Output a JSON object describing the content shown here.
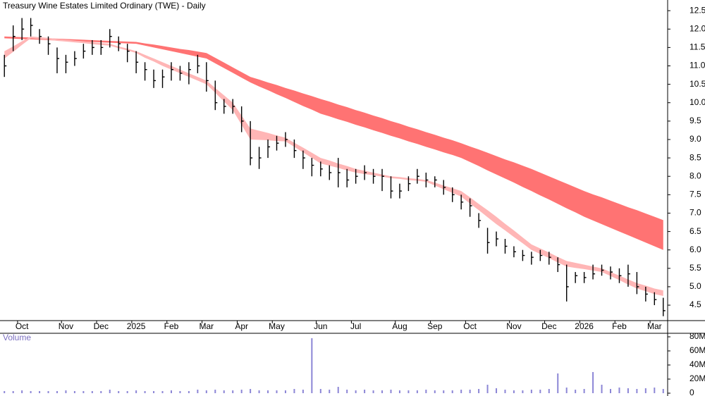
{
  "chart_data": [
    {
      "type": "ohlc",
      "title": "Treasury Wine Estates Limited Ordinary (TWE) - Daily",
      "categories": [
        null,
        null,
        "Oct",
        null,
        null,
        null,
        null,
        "Nov",
        null,
        null,
        null,
        "Dec",
        null,
        null,
        null,
        "2025",
        null,
        null,
        null,
        "Feb",
        null,
        null,
        null,
        "Mar",
        null,
        null,
        null,
        "Apr",
        null,
        null,
        null,
        "May",
        null,
        null,
        null,
        null,
        "Jun",
        null,
        null,
        null,
        "Jul",
        null,
        null,
        null,
        null,
        "Aug",
        null,
        null,
        null,
        "Sep",
        null,
        null,
        null,
        "Oct",
        null,
        null,
        null,
        null,
        "Nov",
        null,
        null,
        null,
        "Dec",
        null,
        null,
        null,
        "2026",
        null,
        null,
        null,
        "Feb",
        null,
        null,
        null,
        "Mar",
        null
      ],
      "high": [
        11.3,
        12.1,
        12.3,
        12.3,
        12.0,
        11.8,
        11.5,
        11.3,
        11.4,
        11.6,
        11.7,
        11.7,
        12.0,
        11.8,
        11.6,
        11.4,
        11.1,
        10.9,
        10.9,
        11.1,
        11.0,
        11.1,
        11.3,
        11.1,
        10.6,
        10.1,
        10.1,
        9.9,
        9.5,
        8.8,
        9.0,
        9.1,
        9.2,
        9.0,
        8.7,
        8.5,
        8.4,
        8.3,
        8.5,
        8.2,
        8.2,
        8.3,
        8.2,
        8.2,
        8.0,
        7.8,
        8.0,
        8.2,
        8.1,
        8.0,
        7.9,
        7.7,
        7.5,
        7.4,
        7.0,
        6.6,
        6.5,
        6.3,
        6.1,
        6.0,
        5.95,
        6.0,
        5.95,
        5.8,
        5.6,
        5.4,
        5.4,
        5.6,
        5.6,
        5.55,
        5.5,
        5.6,
        5.4,
        5.0,
        4.85,
        4.7
      ],
      "low": [
        10.7,
        11.4,
        11.7,
        11.8,
        11.6,
        11.3,
        10.8,
        10.8,
        11.0,
        11.2,
        11.3,
        11.3,
        11.5,
        11.4,
        11.1,
        10.8,
        10.6,
        10.4,
        10.4,
        10.6,
        10.6,
        10.5,
        10.8,
        10.3,
        9.8,
        9.7,
        9.7,
        9.2,
        8.3,
        8.2,
        8.5,
        8.7,
        8.8,
        8.5,
        8.2,
        8.0,
        8.0,
        7.9,
        7.7,
        7.7,
        7.8,
        7.9,
        7.8,
        7.6,
        7.4,
        7.4,
        7.6,
        7.8,
        7.7,
        7.7,
        7.5,
        7.3,
        7.1,
        6.9,
        6.6,
        5.9,
        6.1,
        5.9,
        5.8,
        5.7,
        5.6,
        5.7,
        5.6,
        5.4,
        4.6,
        5.1,
        5.1,
        5.2,
        5.3,
        5.2,
        5.1,
        5.0,
        4.8,
        4.6,
        4.5,
        4.2
      ],
      "close": [
        11.0,
        11.8,
        12.0,
        12.1,
        11.8,
        11.6,
        11.2,
        11.1,
        11.2,
        11.4,
        11.5,
        11.5,
        11.8,
        11.6,
        11.4,
        11.1,
        10.9,
        10.6,
        10.7,
        10.9,
        10.8,
        10.9,
        11.0,
        10.6,
        10.0,
        9.9,
        9.9,
        9.5,
        8.5,
        8.5,
        8.8,
        8.9,
        9.0,
        8.7,
        8.5,
        8.3,
        8.2,
        8.1,
        8.1,
        7.9,
        8.0,
        8.1,
        8.0,
        8.0,
        7.6,
        7.6,
        7.8,
        8.0,
        7.9,
        7.9,
        7.7,
        7.5,
        7.3,
        7.2,
        6.8,
        6.2,
        6.3,
        6.1,
        5.95,
        5.85,
        5.8,
        5.85,
        5.8,
        5.6,
        5.0,
        5.3,
        5.25,
        5.35,
        5.45,
        5.4,
        5.3,
        5.35,
        5.0,
        4.8,
        4.65,
        4.35
      ],
      "color": "#000000",
      "bands": [
        {
          "color": "#ff7373",
          "upper": [
            11.8,
            11.79,
            11.78,
            11.77,
            11.76,
            11.75,
            11.74,
            11.73,
            11.72,
            11.71,
            11.7,
            11.69,
            11.68,
            11.67,
            11.66,
            11.65,
            11.61,
            11.58,
            11.54,
            11.5,
            11.46,
            11.43,
            11.39,
            11.35,
            11.22,
            11.09,
            10.96,
            10.83,
            10.7,
            10.63,
            10.55,
            10.48,
            10.4,
            10.33,
            10.25,
            10.18,
            10.1,
            10.03,
            9.95,
            9.88,
            9.8,
            9.73,
            9.65,
            9.58,
            9.5,
            9.43,
            9.35,
            9.28,
            9.2,
            9.13,
            9.05,
            8.98,
            8.9,
            8.81,
            8.73,
            8.64,
            8.55,
            8.46,
            8.38,
            8.29,
            8.2,
            8.1,
            8.0,
            7.9,
            7.8,
            7.7,
            7.6,
            7.51,
            7.43,
            7.34,
            7.25,
            7.16,
            7.08,
            6.99,
            6.9,
            6.81
          ],
          "lower": [
            11.75,
            11.74,
            11.73,
            11.72,
            11.71,
            11.7,
            11.69,
            11.68,
            11.67,
            11.66,
            11.65,
            11.64,
            11.63,
            11.62,
            11.61,
            11.6,
            11.55,
            11.5,
            11.45,
            11.4,
            11.35,
            11.3,
            11.25,
            11.2,
            11.07,
            10.94,
            10.81,
            10.68,
            10.55,
            10.44,
            10.34,
            10.23,
            10.13,
            10.02,
            9.91,
            9.81,
            9.7,
            9.63,
            9.55,
            9.48,
            9.4,
            9.33,
            9.25,
            9.18,
            9.1,
            9.03,
            8.95,
            8.88,
            8.8,
            8.73,
            8.65,
            8.58,
            8.5,
            8.39,
            8.28,
            8.16,
            8.05,
            7.94,
            7.83,
            7.71,
            7.6,
            7.48,
            7.37,
            7.25,
            7.13,
            7.02,
            6.9,
            6.8,
            6.7,
            6.6,
            6.5,
            6.4,
            6.3,
            6.2,
            6.1,
            6.0
          ]
        },
        {
          "color": "#ffb6b6",
          "upper": [
            11.4,
            11.53,
            11.67,
            11.8,
            11.78,
            11.76,
            11.73,
            11.71,
            11.69,
            11.67,
            11.64,
            11.62,
            11.6,
            11.53,
            11.47,
            11.4,
            11.3,
            11.2,
            11.1,
            11.0,
            10.9,
            10.8,
            10.7,
            10.6,
            10.4,
            10.2,
            10.0,
            9.65,
            9.3,
            9.24,
            9.18,
            9.11,
            9.05,
            8.91,
            8.78,
            8.64,
            8.5,
            8.43,
            8.35,
            8.28,
            8.2,
            8.15,
            8.1,
            8.05,
            8.0,
            7.98,
            7.95,
            7.93,
            7.9,
            7.83,
            7.75,
            7.68,
            7.6,
            7.43,
            7.25,
            7.08,
            6.9,
            6.71,
            6.53,
            6.34,
            6.15,
            6.04,
            5.93,
            5.81,
            5.7,
            5.65,
            5.6,
            5.55,
            5.5,
            5.4,
            5.3,
            5.2,
            5.1,
            5.03,
            4.95,
            4.9
          ],
          "lower": [
            11.2,
            11.38,
            11.57,
            11.75,
            11.73,
            11.71,
            11.68,
            11.66,
            11.64,
            11.62,
            11.59,
            11.57,
            11.55,
            11.48,
            11.42,
            11.35,
            11.22,
            11.12,
            11.0,
            10.9,
            10.8,
            10.7,
            10.6,
            10.5,
            10.27,
            10.03,
            9.8,
            9.4,
            9.0,
            8.99,
            8.98,
            8.96,
            8.95,
            8.8,
            8.65,
            8.5,
            8.35,
            8.29,
            8.23,
            8.16,
            8.1,
            8.06,
            8.03,
            7.99,
            7.95,
            7.93,
            7.9,
            7.88,
            7.85,
            7.75,
            7.65,
            7.55,
            7.45,
            7.26,
            7.08,
            6.89,
            6.7,
            6.53,
            6.35,
            6.18,
            6.0,
            5.89,
            5.78,
            5.66,
            5.55,
            5.51,
            5.48,
            5.44,
            5.4,
            5.29,
            5.18,
            5.06,
            4.95,
            4.88,
            4.8,
            4.75
          ]
        }
      ],
      "ylim": [
        4.08,
        12.79
      ],
      "yticks": [
        4.5,
        {
          "value": 5,
          "label": "5.0"
        },
        5.5,
        {
          "value": 6,
          "label": "6.0"
        },
        6.5,
        {
          "value": 7,
          "label": "7.0"
        },
        7.5,
        {
          "value": 8,
          "label": "8.0"
        },
        8.5,
        {
          "value": 9,
          "label": "9.0"
        },
        9.5,
        {
          "value": 10,
          "label": "10.0"
        },
        10.5,
        {
          "value": 11,
          "label": "11.0"
        },
        11.5,
        {
          "value": 12,
          "label": "12.0"
        },
        12.5
      ]
    },
    {
      "type": "bar",
      "title": "Volume",
      "values": [
        3,
        3,
        4,
        3,
        3,
        3,
        3,
        4,
        3,
        3,
        3,
        3,
        5,
        3,
        3,
        4,
        3,
        3,
        3,
        4,
        3,
        3,
        5,
        4,
        5,
        4,
        4,
        5,
        6,
        4,
        4,
        4,
        4,
        6,
        5,
        78,
        6,
        5,
        9,
        5,
        4,
        5,
        4,
        4,
        5,
        4,
        4,
        4,
        5,
        4,
        4,
        4,
        5,
        5,
        6,
        12,
        7,
        5,
        4,
        4,
        5,
        5,
        6,
        28,
        8,
        5,
        6,
        30,
        12,
        6,
        8,
        7,
        6,
        7,
        8,
        6
      ],
      "color": "#8c86d6",
      "ylim": [
        0,
        84
      ],
      "yticks": [
        {
          "value": 0,
          "label": "0"
        },
        {
          "value": 20,
          "label": "20M"
        },
        {
          "value": 40,
          "label": "40M"
        },
        {
          "value": 60,
          "label": "60M"
        },
        {
          "value": 80,
          "label": "80M"
        }
      ]
    }
  ]
}
